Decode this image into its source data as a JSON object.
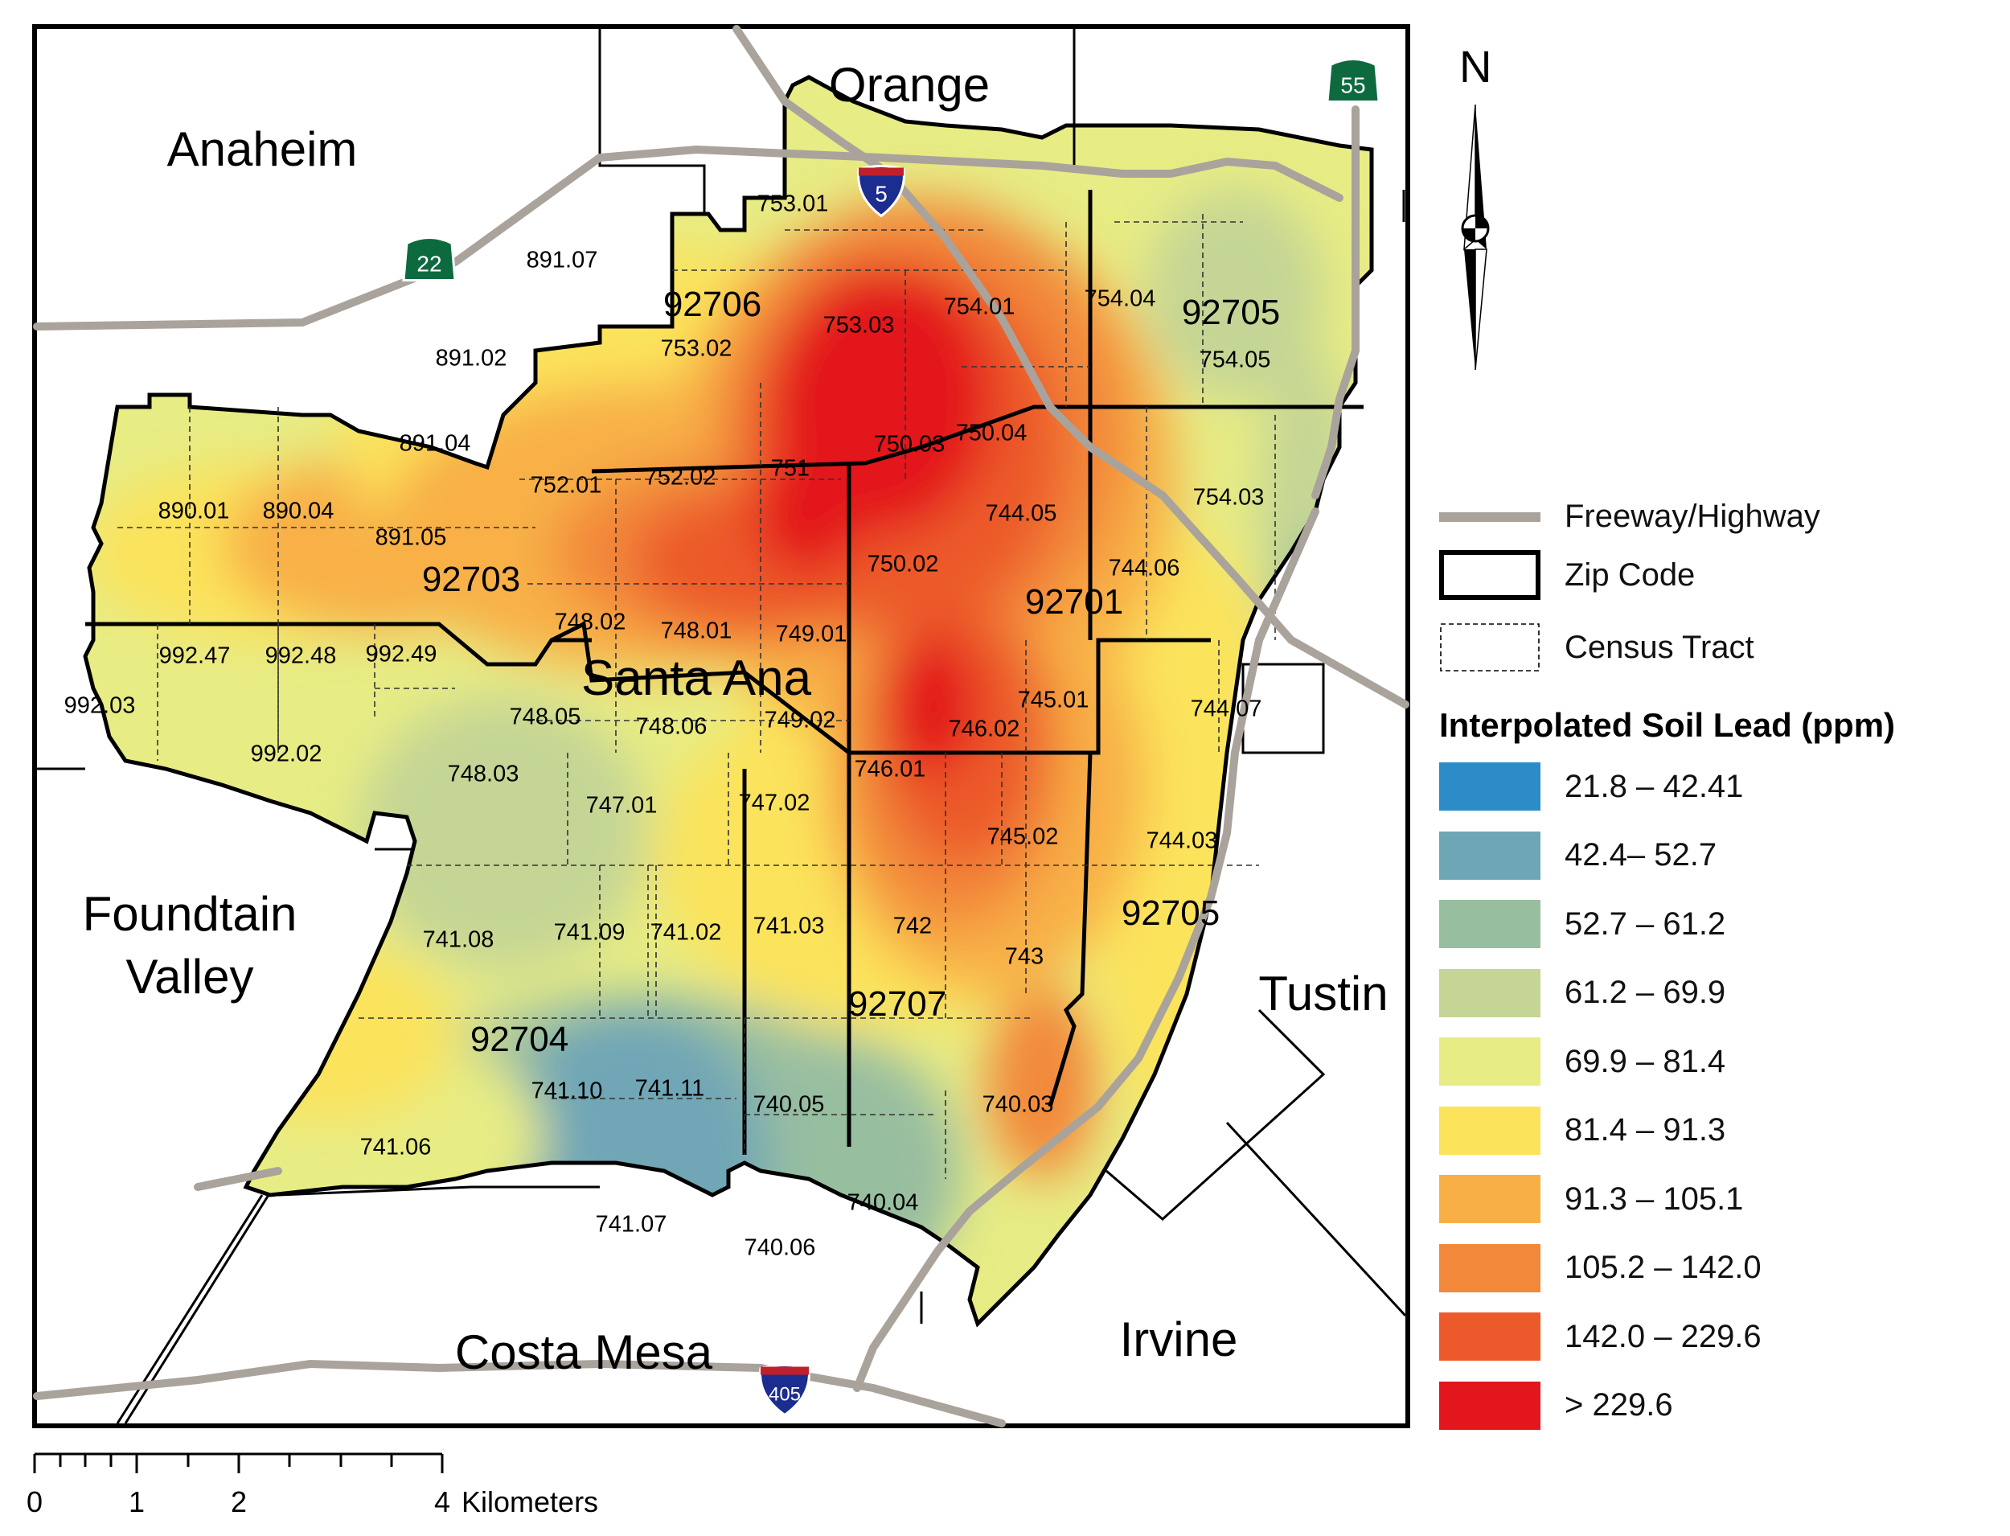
{
  "map": {
    "cities": [
      {
        "key": "anaheim",
        "label": "Anaheim"
      },
      {
        "key": "orange",
        "label": "Orange"
      },
      {
        "key": "santa_ana",
        "label": "Santa Ana"
      },
      {
        "key": "fountain_valley",
        "label": "Foundtain Valley"
      },
      {
        "key": "tustin",
        "label": "Tustin"
      },
      {
        "key": "costa_mesa",
        "label": "Costa Mesa"
      },
      {
        "key": "irvine",
        "label": "Irvine"
      }
    ],
    "zip_codes": [
      "92706",
      "92705",
      "92703",
      "92701",
      "92705",
      "92704",
      "92707"
    ],
    "census_tracts": [
      "753.01",
      "891.07",
      "891.02",
      "891.04",
      "890.01",
      "890.04",
      "891.05",
      "752.01",
      "752.02",
      "751",
      "750.03",
      "750.04",
      "753.03",
      "754.01",
      "753.02",
      "754.04",
      "754.05",
      "754.03",
      "744.05",
      "744.06",
      "750.02",
      "748.02",
      "748.01",
      "749.01",
      "992.47",
      "992.48",
      "992.49",
      "992.03",
      "992.02",
      "748.05",
      "748.06",
      "749.02",
      "746.02",
      "745.01",
      "744.07",
      "748.03",
      "747.01",
      "747.02",
      "746.01",
      "745.02",
      "744.03",
      "741.08",
      "741.09",
      "741.02",
      "741.03",
      "742",
      "743",
      "741.10",
      "741.11",
      "740.05",
      "740.03",
      "741.06",
      "741.07",
      "740.04",
      "740.06"
    ],
    "highway_shields": [
      {
        "route": "5",
        "type": "interstate"
      },
      {
        "route": "22",
        "type": "state"
      },
      {
        "route": "55",
        "type": "state"
      },
      {
        "route": "405",
        "type": "interstate"
      }
    ]
  },
  "north_arrow": {
    "label": "N"
  },
  "legend": {
    "line_items": [
      {
        "label": "Freeway/Highway",
        "kind": "freeway",
        "color": "#a9a39c"
      },
      {
        "label": "Zip Code",
        "kind": "zip",
        "color": "#000000"
      },
      {
        "label": "Census Tract",
        "kind": "tract",
        "color": "#000000"
      }
    ],
    "title": "Interpolated Soil Lead (ppm)",
    "classes": [
      {
        "label": "21.8 – 42.41",
        "color": "#2b8cc8"
      },
      {
        "label": "42.4– 52.7",
        "color": "#6fa6b6"
      },
      {
        "label": "52.7 – 61.2",
        "color": "#98bea0"
      },
      {
        "label": "61.2 – 69.9",
        "color": "#c4d595"
      },
      {
        "label": "69.9 – 81.4",
        "color": "#e7ec84"
      },
      {
        "label": "81.4 – 91.3",
        "color": "#fbe35c"
      },
      {
        "label": "91.3 – 105.1",
        "color": "#f8b046"
      },
      {
        "label": "105.2 – 142.0",
        "color": "#f2893a"
      },
      {
        "label": "142.0 – 229.6",
        "color": "#ec5a2c"
      },
      {
        "label": "> 229.6",
        "color": "#e3161e"
      }
    ]
  },
  "scale_bar": {
    "ticks": [
      "0",
      "1",
      "2",
      "4"
    ],
    "unit": "Kilometers"
  }
}
